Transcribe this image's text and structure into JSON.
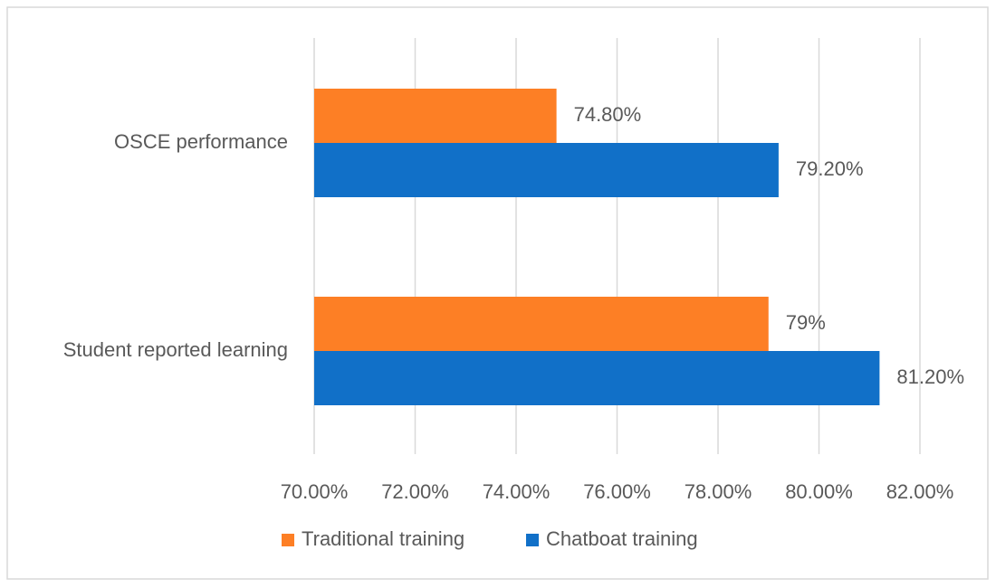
{
  "chart_data": {
    "type": "bar",
    "orientation": "horizontal",
    "title": "",
    "xlabel": "",
    "ylabel": "",
    "categories": [
      "OSCE performance",
      "Student reported learning"
    ],
    "series": [
      {
        "name": "Traditional training",
        "color": "#fd7f25",
        "values": [
          74.8,
          79.0
        ],
        "labels": [
          "74.80%",
          "79%"
        ]
      },
      {
        "name": "Chatboat training",
        "color": "#1170c8",
        "values": [
          79.2,
          81.2
        ],
        "labels": [
          "79.20%",
          "81.20%"
        ]
      }
    ],
    "xlim": [
      70,
      82
    ],
    "x_ticks": [
      70,
      72,
      74,
      76,
      78,
      80,
      82
    ],
    "x_tick_labels": [
      "70.00%",
      "72.00%",
      "74.00%",
      "76.00%",
      "78.00%",
      "80.00%",
      "82.00%"
    ],
    "grid": "vertical",
    "legend": "bottom-center"
  }
}
